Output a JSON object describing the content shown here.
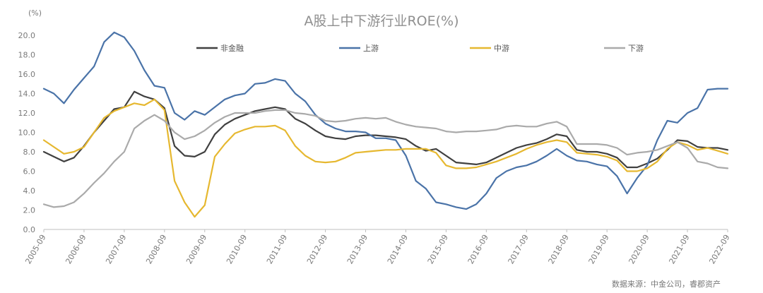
{
  "chart_data": {
    "type": "line",
    "title": "A股上中下游行业ROE(%)",
    "unit_label": "(%)",
    "source": "数据来源：中金公司，睿郡资产",
    "ylim": [
      0,
      20
    ],
    "yticks": [
      "0.0",
      "2.0",
      "4.0",
      "6.0",
      "8.0",
      "10.0",
      "12.0",
      "14.0",
      "16.0",
      "18.0",
      "20.0"
    ],
    "xlim": [
      2005.75,
      2022.75
    ],
    "xticks": [
      {
        "x": 2005.75,
        "label": "2005-09"
      },
      {
        "x": 2006.75,
        "label": "2006-09"
      },
      {
        "x": 2007.75,
        "label": "2007-09"
      },
      {
        "x": 2008.75,
        "label": "2008-09"
      },
      {
        "x": 2009.75,
        "label": "2009-09"
      },
      {
        "x": 2010.75,
        "label": "2010-09"
      },
      {
        "x": 2011.75,
        "label": "2011-09"
      },
      {
        "x": 2012.75,
        "label": "2012-09"
      },
      {
        "x": 2013.75,
        "label": "2013-09"
      },
      {
        "x": 2014.75,
        "label": "2014-09"
      },
      {
        "x": 2015.75,
        "label": "2015-09"
      },
      {
        "x": 2016.75,
        "label": "2016-09"
      },
      {
        "x": 2017.75,
        "label": "2017-09"
      },
      {
        "x": 2018.75,
        "label": "2018-09"
      },
      {
        "x": 2019.75,
        "label": "2019-09"
      },
      {
        "x": 2020.75,
        "label": "2020-09"
      },
      {
        "x": 2021.75,
        "label": "2021-09"
      },
      {
        "x": 2022.75,
        "label": "2022-09"
      }
    ],
    "grid": false,
    "legend_position": "top",
    "series": [
      {
        "name": "非金融",
        "color": "#404040",
        "points": [
          [
            2005.75,
            8.0
          ],
          [
            2006.0,
            7.5
          ],
          [
            2006.25,
            7.0
          ],
          [
            2006.5,
            7.4
          ],
          [
            2006.75,
            8.6
          ],
          [
            2007.0,
            10.0
          ],
          [
            2007.25,
            11.2
          ],
          [
            2007.5,
            12.4
          ],
          [
            2007.75,
            12.6
          ],
          [
            2008.0,
            14.2
          ],
          [
            2008.25,
            13.7
          ],
          [
            2008.5,
            13.4
          ],
          [
            2008.75,
            12.5
          ],
          [
            2009.0,
            8.6
          ],
          [
            2009.25,
            7.6
          ],
          [
            2009.5,
            7.5
          ],
          [
            2009.75,
            8.0
          ],
          [
            2010.0,
            9.8
          ],
          [
            2010.25,
            10.8
          ],
          [
            2010.5,
            11.4
          ],
          [
            2010.75,
            11.8
          ],
          [
            2011.0,
            12.2
          ],
          [
            2011.25,
            12.4
          ],
          [
            2011.5,
            12.6
          ],
          [
            2011.75,
            12.4
          ],
          [
            2012.0,
            11.4
          ],
          [
            2012.25,
            10.9
          ],
          [
            2012.5,
            10.2
          ],
          [
            2012.75,
            9.6
          ],
          [
            2013.0,
            9.4
          ],
          [
            2013.25,
            9.3
          ],
          [
            2013.5,
            9.6
          ],
          [
            2013.75,
            9.7
          ],
          [
            2014.0,
            9.7
          ],
          [
            2014.25,
            9.6
          ],
          [
            2014.5,
            9.5
          ],
          [
            2014.75,
            9.3
          ],
          [
            2015.0,
            8.6
          ],
          [
            2015.25,
            8.1
          ],
          [
            2015.5,
            8.3
          ],
          [
            2015.75,
            7.6
          ],
          [
            2016.0,
            6.9
          ],
          [
            2016.25,
            6.8
          ],
          [
            2016.5,
            6.7
          ],
          [
            2016.75,
            6.9
          ],
          [
            2017.0,
            7.4
          ],
          [
            2017.25,
            7.9
          ],
          [
            2017.5,
            8.4
          ],
          [
            2017.75,
            8.7
          ],
          [
            2018.0,
            8.9
          ],
          [
            2018.25,
            9.3
          ],
          [
            2018.5,
            9.8
          ],
          [
            2018.75,
            9.6
          ],
          [
            2019.0,
            8.2
          ],
          [
            2019.25,
            8.0
          ],
          [
            2019.5,
            8.0
          ],
          [
            2019.75,
            7.8
          ],
          [
            2020.0,
            7.4
          ],
          [
            2020.25,
            6.4
          ],
          [
            2020.5,
            6.4
          ],
          [
            2020.75,
            6.8
          ],
          [
            2021.0,
            7.3
          ],
          [
            2021.25,
            8.2
          ],
          [
            2021.5,
            9.2
          ],
          [
            2021.75,
            9.1
          ],
          [
            2022.0,
            8.5
          ],
          [
            2022.25,
            8.4
          ],
          [
            2022.5,
            8.4
          ],
          [
            2022.75,
            8.2
          ]
        ]
      },
      {
        "name": "上游",
        "color": "#4a73a8",
        "points": [
          [
            2005.75,
            14.5
          ],
          [
            2006.0,
            14.0
          ],
          [
            2006.25,
            13.0
          ],
          [
            2006.5,
            14.4
          ],
          [
            2006.75,
            15.6
          ],
          [
            2007.0,
            16.8
          ],
          [
            2007.25,
            19.3
          ],
          [
            2007.5,
            20.3
          ],
          [
            2007.75,
            19.8
          ],
          [
            2008.0,
            18.4
          ],
          [
            2008.25,
            16.4
          ],
          [
            2008.5,
            14.8
          ],
          [
            2008.75,
            14.6
          ],
          [
            2009.0,
            12.0
          ],
          [
            2009.25,
            11.3
          ],
          [
            2009.5,
            12.2
          ],
          [
            2009.75,
            11.8
          ],
          [
            2010.0,
            12.6
          ],
          [
            2010.25,
            13.4
          ],
          [
            2010.5,
            13.8
          ],
          [
            2010.75,
            14.0
          ],
          [
            2011.0,
            15.0
          ],
          [
            2011.25,
            15.1
          ],
          [
            2011.5,
            15.5
          ],
          [
            2011.75,
            15.3
          ],
          [
            2012.0,
            14.0
          ],
          [
            2012.25,
            13.2
          ],
          [
            2012.5,
            11.8
          ],
          [
            2012.75,
            10.9
          ],
          [
            2013.0,
            10.4
          ],
          [
            2013.25,
            10.1
          ],
          [
            2013.5,
            10.1
          ],
          [
            2013.75,
            10.0
          ],
          [
            2014.0,
            9.4
          ],
          [
            2014.25,
            9.4
          ],
          [
            2014.5,
            9.2
          ],
          [
            2014.75,
            7.6
          ],
          [
            2015.0,
            5.0
          ],
          [
            2015.25,
            4.2
          ],
          [
            2015.5,
            2.8
          ],
          [
            2015.75,
            2.6
          ],
          [
            2016.0,
            2.3
          ],
          [
            2016.25,
            2.1
          ],
          [
            2016.5,
            2.6
          ],
          [
            2016.75,
            3.7
          ],
          [
            2017.0,
            5.3
          ],
          [
            2017.25,
            6.0
          ],
          [
            2017.5,
            6.4
          ],
          [
            2017.75,
            6.6
          ],
          [
            2018.0,
            7.0
          ],
          [
            2018.25,
            7.6
          ],
          [
            2018.5,
            8.3
          ],
          [
            2018.75,
            7.6
          ],
          [
            2019.0,
            7.1
          ],
          [
            2019.25,
            7.0
          ],
          [
            2019.5,
            6.7
          ],
          [
            2019.75,
            6.5
          ],
          [
            2020.0,
            5.5
          ],
          [
            2020.25,
            3.7
          ],
          [
            2020.5,
            5.3
          ],
          [
            2020.75,
            6.6
          ],
          [
            2021.0,
            9.2
          ],
          [
            2021.25,
            11.2
          ],
          [
            2021.5,
            11.0
          ],
          [
            2021.75,
            12.0
          ],
          [
            2022.0,
            12.5
          ],
          [
            2022.25,
            14.4
          ],
          [
            2022.5,
            14.5
          ],
          [
            2022.75,
            14.5
          ]
        ]
      },
      {
        "name": "中游",
        "color": "#e6b830",
        "points": [
          [
            2005.75,
            9.2
          ],
          [
            2006.0,
            8.5
          ],
          [
            2006.25,
            7.8
          ],
          [
            2006.5,
            8.0
          ],
          [
            2006.75,
            8.5
          ],
          [
            2007.0,
            10.0
          ],
          [
            2007.25,
            11.5
          ],
          [
            2007.5,
            12.2
          ],
          [
            2007.75,
            12.6
          ],
          [
            2008.0,
            13.0
          ],
          [
            2008.25,
            12.8
          ],
          [
            2008.5,
            13.4
          ],
          [
            2008.75,
            12.3
          ],
          [
            2009.0,
            5.0
          ],
          [
            2009.25,
            2.8
          ],
          [
            2009.5,
            1.3
          ],
          [
            2009.75,
            2.5
          ],
          [
            2010.0,
            7.5
          ],
          [
            2010.25,
            8.8
          ],
          [
            2010.5,
            9.9
          ],
          [
            2010.75,
            10.3
          ],
          [
            2011.0,
            10.6
          ],
          [
            2011.25,
            10.6
          ],
          [
            2011.5,
            10.7
          ],
          [
            2011.75,
            10.2
          ],
          [
            2012.0,
            8.6
          ],
          [
            2012.25,
            7.6
          ],
          [
            2012.5,
            7.0
          ],
          [
            2012.75,
            6.9
          ],
          [
            2013.0,
            7.0
          ],
          [
            2013.25,
            7.4
          ],
          [
            2013.5,
            7.9
          ],
          [
            2013.75,
            8.0
          ],
          [
            2014.0,
            8.1
          ],
          [
            2014.25,
            8.2
          ],
          [
            2014.5,
            8.2
          ],
          [
            2014.75,
            8.3
          ],
          [
            2015.0,
            8.3
          ],
          [
            2015.25,
            8.3
          ],
          [
            2015.5,
            7.9
          ],
          [
            2015.75,
            6.6
          ],
          [
            2016.0,
            6.3
          ],
          [
            2016.25,
            6.3
          ],
          [
            2016.5,
            6.4
          ],
          [
            2016.75,
            6.7
          ],
          [
            2017.0,
            7.0
          ],
          [
            2017.25,
            7.4
          ],
          [
            2017.5,
            7.8
          ],
          [
            2017.75,
            8.3
          ],
          [
            2018.0,
            8.7
          ],
          [
            2018.25,
            9.0
          ],
          [
            2018.5,
            9.2
          ],
          [
            2018.75,
            9.0
          ],
          [
            2019.0,
            7.9
          ],
          [
            2019.25,
            7.8
          ],
          [
            2019.5,
            7.7
          ],
          [
            2019.75,
            7.5
          ],
          [
            2020.0,
            7.1
          ],
          [
            2020.25,
            6.0
          ],
          [
            2020.5,
            6.0
          ],
          [
            2020.75,
            6.3
          ],
          [
            2021.0,
            7.0
          ],
          [
            2021.25,
            8.3
          ],
          [
            2021.5,
            9.0
          ],
          [
            2021.75,
            8.7
          ],
          [
            2022.0,
            8.2
          ],
          [
            2022.25,
            8.4
          ],
          [
            2022.5,
            8.1
          ],
          [
            2022.75,
            7.8
          ]
        ]
      },
      {
        "name": "下游",
        "color": "#aaaaaa",
        "points": [
          [
            2005.75,
            2.6
          ],
          [
            2006.0,
            2.3
          ],
          [
            2006.25,
            2.4
          ],
          [
            2006.5,
            2.8
          ],
          [
            2006.75,
            3.7
          ],
          [
            2007.0,
            4.8
          ],
          [
            2007.25,
            5.8
          ],
          [
            2007.5,
            7.0
          ],
          [
            2007.75,
            8.0
          ],
          [
            2008.0,
            10.4
          ],
          [
            2008.25,
            11.2
          ],
          [
            2008.5,
            11.8
          ],
          [
            2008.75,
            11.2
          ],
          [
            2009.0,
            10.0
          ],
          [
            2009.25,
            9.3
          ],
          [
            2009.5,
            9.6
          ],
          [
            2009.75,
            10.2
          ],
          [
            2010.0,
            11.0
          ],
          [
            2010.25,
            11.6
          ],
          [
            2010.5,
            12.0
          ],
          [
            2010.75,
            12.0
          ],
          [
            2011.0,
            12.0
          ],
          [
            2011.25,
            12.2
          ],
          [
            2011.5,
            12.3
          ],
          [
            2011.75,
            12.3
          ],
          [
            2012.0,
            12.0
          ],
          [
            2012.25,
            11.9
          ],
          [
            2012.5,
            11.7
          ],
          [
            2012.75,
            11.2
          ],
          [
            2013.0,
            11.1
          ],
          [
            2013.25,
            11.2
          ],
          [
            2013.5,
            11.4
          ],
          [
            2013.75,
            11.5
          ],
          [
            2014.0,
            11.4
          ],
          [
            2014.25,
            11.5
          ],
          [
            2014.5,
            11.1
          ],
          [
            2014.75,
            10.8
          ],
          [
            2015.0,
            10.6
          ],
          [
            2015.25,
            10.5
          ],
          [
            2015.5,
            10.4
          ],
          [
            2015.75,
            10.1
          ],
          [
            2016.0,
            10.0
          ],
          [
            2016.25,
            10.1
          ],
          [
            2016.5,
            10.1
          ],
          [
            2016.75,
            10.2
          ],
          [
            2017.0,
            10.3
          ],
          [
            2017.25,
            10.6
          ],
          [
            2017.5,
            10.7
          ],
          [
            2017.75,
            10.6
          ],
          [
            2018.0,
            10.6
          ],
          [
            2018.25,
            10.9
          ],
          [
            2018.5,
            11.1
          ],
          [
            2018.75,
            10.6
          ],
          [
            2019.0,
            8.8
          ],
          [
            2019.25,
            8.8
          ],
          [
            2019.5,
            8.8
          ],
          [
            2019.75,
            8.7
          ],
          [
            2020.0,
            8.4
          ],
          [
            2020.25,
            7.7
          ],
          [
            2020.5,
            7.9
          ],
          [
            2020.75,
            8.0
          ],
          [
            2021.0,
            8.2
          ],
          [
            2021.25,
            8.6
          ],
          [
            2021.5,
            9.0
          ],
          [
            2021.75,
            8.4
          ],
          [
            2022.0,
            7.0
          ],
          [
            2022.25,
            6.8
          ],
          [
            2022.5,
            6.4
          ],
          [
            2022.75,
            6.3
          ]
        ]
      }
    ]
  }
}
